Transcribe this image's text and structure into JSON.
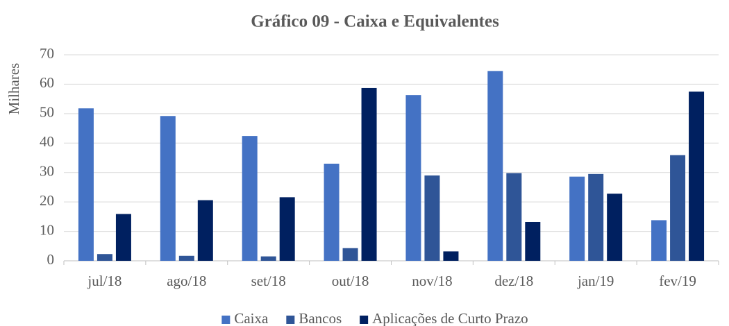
{
  "chart_data": {
    "type": "bar",
    "title": "Gráfico 09 - Caixa e Equivalentes",
    "y_label": "Milhares",
    "categories": [
      "jul/18",
      "ago/18",
      "set/18",
      "out/18",
      "nov/18",
      "dez/18",
      "jan/19",
      "fev/19"
    ],
    "series": [
      {
        "name": "Caixa",
        "color": "#4472c4",
        "values": [
          51.8,
          49.2,
          42.4,
          33.0,
          56.3,
          64.5,
          28.6,
          13.8
        ]
      },
      {
        "name": "Bancos",
        "color": "#2f5597",
        "values": [
          2.3,
          1.7,
          1.5,
          4.3,
          29.0,
          29.8,
          29.5,
          35.9
        ]
      },
      {
        "name": "Aplicações de Curto Prazo",
        "color": "#002060",
        "values": [
          15.9,
          20.6,
          21.6,
          58.7,
          3.2,
          13.2,
          22.8,
          57.5
        ]
      }
    ],
    "ylim": [
      0,
      70
    ],
    "yticks": [
      0,
      10,
      20,
      30,
      40,
      50,
      60,
      70
    ],
    "grid": true,
    "legend": "bottom"
  }
}
